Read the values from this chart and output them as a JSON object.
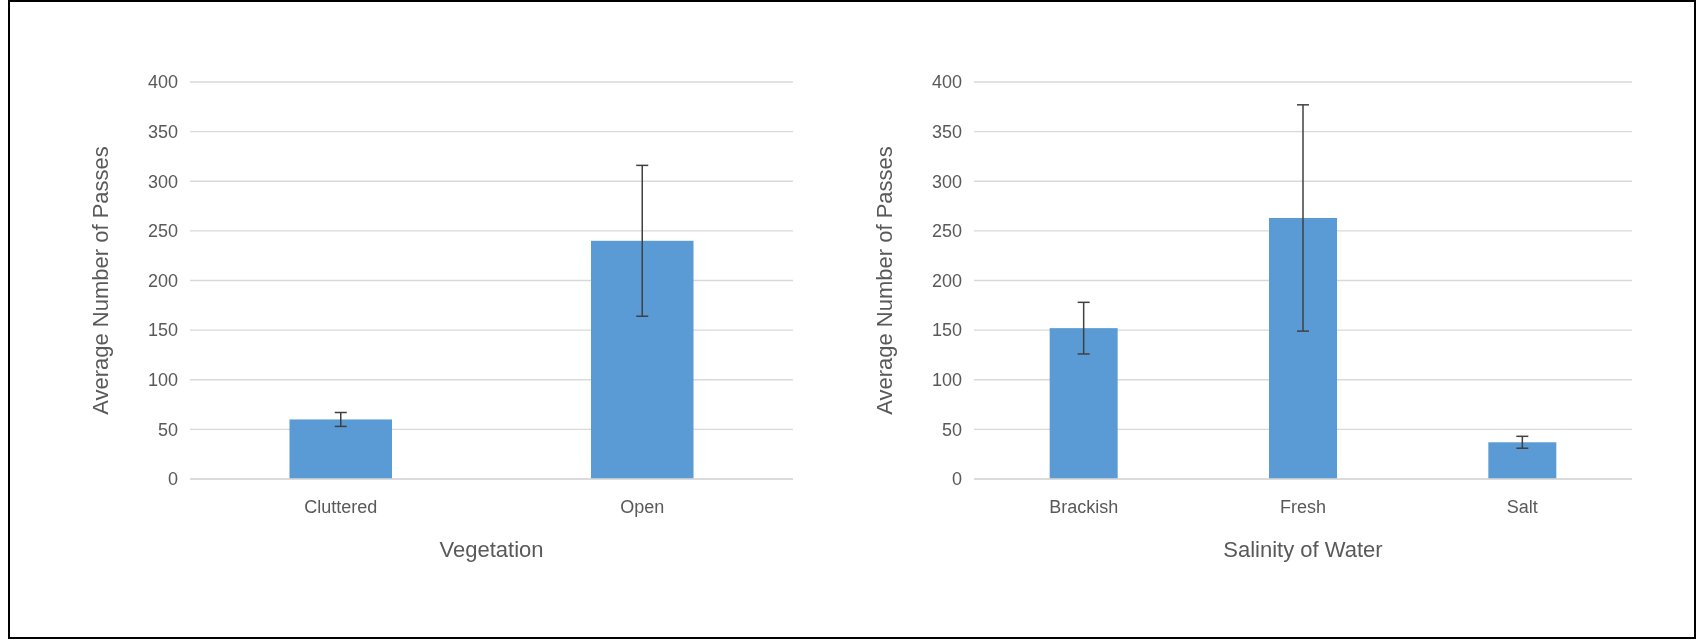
{
  "chart_data": [
    {
      "type": "bar",
      "xlabel": "Vegetation",
      "ylabel": "Average Number of Passes",
      "categories": [
        "Cluttered",
        "Open"
      ],
      "values": [
        60,
        240
      ],
      "errors": [
        [
          53,
          67
        ],
        [
          164,
          316
        ]
      ],
      "color": "#5b9bd5",
      "ylim": [
        0,
        400
      ],
      "yticks": [
        0,
        50,
        100,
        150,
        200,
        250,
        300,
        350,
        400
      ],
      "grid": "y"
    },
    {
      "type": "bar",
      "xlabel": "Salinity of Water",
      "ylabel": "Average Number of Passes",
      "categories": [
        "Brackish",
        "Fresh",
        "Salt"
      ],
      "values": [
        152,
        263,
        37
      ],
      "errors": [
        [
          126,
          178
        ],
        [
          149,
          377
        ],
        [
          31,
          43
        ]
      ],
      "color": "#5b9bd5",
      "ylim": [
        0,
        400
      ],
      "yticks": [
        0,
        50,
        100,
        150,
        200,
        250,
        300,
        350,
        400
      ],
      "grid": "y"
    }
  ]
}
